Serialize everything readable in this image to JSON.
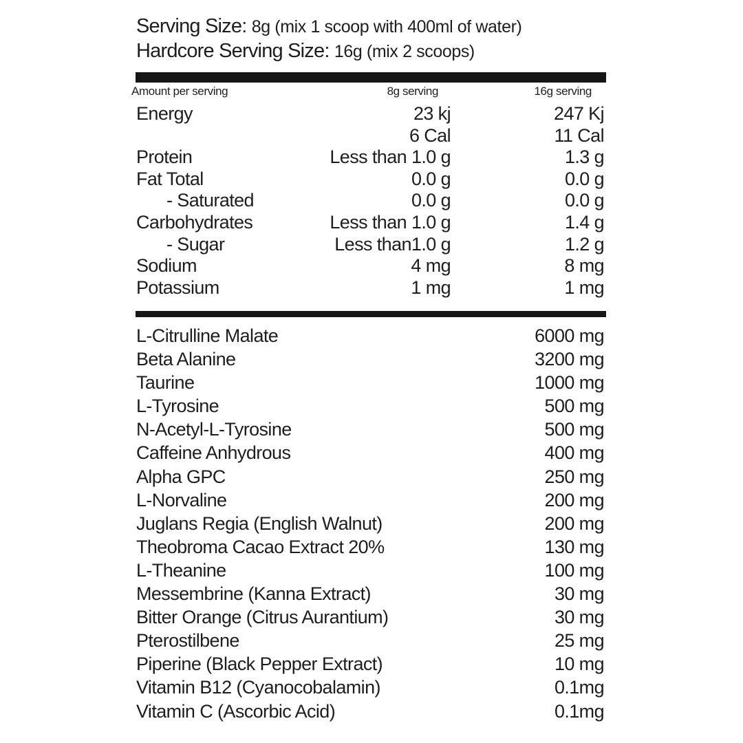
{
  "header": {
    "serving_label": "Serving Size:",
    "serving_value": "8g (mix 1 scoop with 400ml of water)",
    "hardcore_label": "Hardcore Serving Size:",
    "hardcore_value": "16g (mix 2 scoops)"
  },
  "columns": {
    "amount": "Amount per serving",
    "col1": "8g serving",
    "col2": "16g serving"
  },
  "nutrition": [
    {
      "name": "Energy",
      "v1": "23 kj",
      "v2": "247 Kj"
    },
    {
      "name": "",
      "v1": "6 Cal",
      "v2": "11 Cal"
    },
    {
      "name": "Protein",
      "v1": "Less than 1.0 g",
      "v2": "1.3 g"
    },
    {
      "name": "Fat Total",
      "v1": "0.0 g",
      "v2": "0.0 g"
    },
    {
      "name": "    - Saturated",
      "v1": "0.0 g",
      "v2": "0.0 g"
    },
    {
      "name": "Carbohydrates",
      "v1": "Less than 1.0 g",
      "v2": "1.4 g"
    },
    {
      "name": "    - Sugar",
      "v1": "Less than1.0 g",
      "v2": "1.2 g"
    },
    {
      "name": "Sodium",
      "v1": "4 mg",
      "v2": "8 mg"
    },
    {
      "name": "Potassium",
      "v1": "1 mg",
      "v2": "1 mg"
    }
  ],
  "ingredients": [
    {
      "name": "L-Citrulline Malate",
      "amount": "6000 mg"
    },
    {
      "name": "Beta Alanine",
      "amount": "3200 mg"
    },
    {
      "name": "Taurine",
      "amount": "1000 mg"
    },
    {
      "name": "L-Tyrosine",
      "amount": "500 mg"
    },
    {
      "name": "N-Acetyl-L-Tyrosine",
      "amount": "500 mg"
    },
    {
      "name": "Caffeine Anhydrous",
      "amount": "400 mg"
    },
    {
      "name": "Alpha GPC",
      "amount": "250 mg"
    },
    {
      "name": "L-Norvaline",
      "amount": "200 mg"
    },
    {
      "name": "Juglans Regia (English Walnut)",
      "amount": "200 mg"
    },
    {
      "name": "Theobroma Cacao Extract 20%",
      "amount": "130 mg"
    },
    {
      "name": "L-Theanine",
      "amount": "100 mg"
    },
    {
      "name": "Messembrine (Kanna Extract)",
      "amount": "30 mg"
    },
    {
      "name": "Bitter Orange (Citrus Aurantium)",
      "amount": "30 mg"
    },
    {
      "name": "Pterostilbene",
      "amount": "25 mg"
    },
    {
      "name": "Piperine (Black Pepper Extract)",
      "amount": "10 mg"
    },
    {
      "name": "Vitamin B12 (Cyanocobalamin)",
      "amount": "0.1mg"
    },
    {
      "name": "Vitamin C (Ascorbic Acid)",
      "amount": "0.1mg"
    }
  ]
}
